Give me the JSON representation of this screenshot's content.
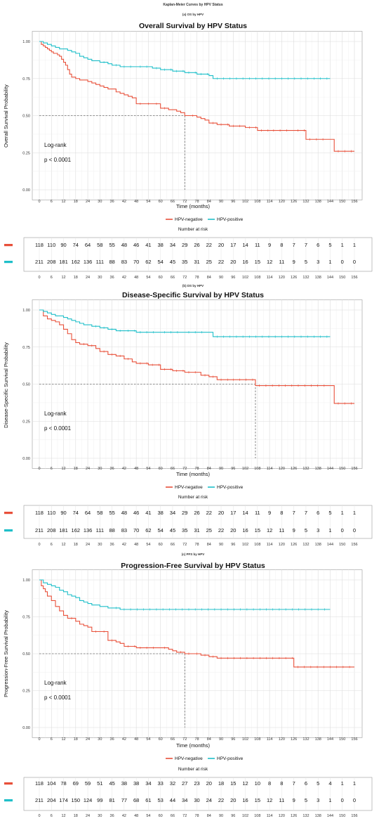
{
  "figure_title": "Kaplan-Meier Curves by HPV Status",
  "chart_data": [
    {
      "type": "line",
      "panel_label": "(a) OS by HPV",
      "title": "Overall Survival by HPV Status",
      "xlabel": "Time (months)",
      "ylabel": "Overall Survival Probability",
      "xlim": [
        0,
        156
      ],
      "ylim": [
        0,
        1
      ],
      "xticks": [
        "0",
        "6",
        "12",
        "18",
        "24",
        "30",
        "36",
        "42",
        "48",
        "54",
        "60",
        "66",
        "72",
        "78",
        "84",
        "90",
        "96",
        "102",
        "108",
        "114",
        "120",
        "126",
        "132",
        "138",
        "144",
        "150",
        "156"
      ],
      "yticks": [
        "0.00",
        "0.25",
        "0.50",
        "0.75",
        "1.00"
      ],
      "grid": true,
      "annotation_line1": "Log-rank",
      "annotation_line2": "p < 0.0001",
      "median_survival_months": 72,
      "legend": {
        "placement": "bottom",
        "entries": [
          "HPV-negative",
          "HPV-positive"
        ]
      },
      "series": [
        {
          "name": "HPV-negative",
          "color": "#E8503A",
          "x": [
            0,
            1,
            2,
            3,
            4,
            5,
            6,
            7,
            8,
            9,
            10,
            11,
            12,
            13,
            14,
            15,
            16,
            18,
            20,
            22,
            24,
            26,
            28,
            30,
            32,
            34,
            36,
            38,
            40,
            42,
            44,
            46,
            48,
            52,
            56,
            60,
            64,
            66,
            68,
            70,
            72,
            74,
            78,
            80,
            82,
            84,
            88,
            94,
            102,
            108,
            114,
            126,
            132,
            144,
            146,
            156
          ],
          "y": [
            1.0,
            0.98,
            0.97,
            0.96,
            0.95,
            0.94,
            0.93,
            0.92,
            0.92,
            0.91,
            0.9,
            0.88,
            0.86,
            0.84,
            0.81,
            0.78,
            0.76,
            0.75,
            0.74,
            0.74,
            0.73,
            0.72,
            0.71,
            0.7,
            0.69,
            0.68,
            0.68,
            0.66,
            0.65,
            0.64,
            0.63,
            0.62,
            0.58,
            0.58,
            0.58,
            0.55,
            0.54,
            0.54,
            0.53,
            0.52,
            0.5,
            0.5,
            0.49,
            0.48,
            0.47,
            0.45,
            0.44,
            0.43,
            0.42,
            0.4,
            0.4,
            0.4,
            0.34,
            0.34,
            0.26,
            0.26
          ]
        },
        {
          "name": "HPV-positive",
          "color": "#1FBFC9",
          "x": [
            0,
            2,
            4,
            6,
            8,
            10,
            12,
            14,
            16,
            18,
            20,
            22,
            24,
            26,
            28,
            30,
            34,
            36,
            40,
            48,
            56,
            60,
            66,
            72,
            78,
            84,
            86,
            144
          ],
          "y": [
            1.0,
            0.99,
            0.98,
            0.97,
            0.96,
            0.95,
            0.95,
            0.94,
            0.93,
            0.92,
            0.9,
            0.89,
            0.88,
            0.87,
            0.87,
            0.86,
            0.85,
            0.84,
            0.83,
            0.83,
            0.82,
            0.81,
            0.8,
            0.79,
            0.78,
            0.77,
            0.75,
            0.75
          ]
        }
      ],
      "risk_table": {
        "title": "Number at risk",
        "HPV-negative": [
          "118",
          "110",
          "90",
          "74",
          "64",
          "58",
          "55",
          "48",
          "46",
          "41",
          "38",
          "34",
          "29",
          "26",
          "22",
          "20",
          "17",
          "14",
          "11",
          "9",
          "8",
          "7",
          "7",
          "6",
          "5",
          "1",
          "1"
        ],
        "HPV-positive": [
          "211",
          "208",
          "181",
          "162",
          "136",
          "111",
          "88",
          "83",
          "70",
          "62",
          "54",
          "45",
          "35",
          "31",
          "25",
          "22",
          "20",
          "16",
          "15",
          "12",
          "11",
          "9",
          "5",
          "3",
          "1",
          "0",
          "0"
        ]
      }
    },
    {
      "type": "line",
      "panel_label": "(b) DS by HPV",
      "title": "Disease-Specific Survival by HPV Status",
      "xlabel": "Time (months)",
      "ylabel": "Disease-Specific Survival Probability",
      "xlim": [
        0,
        156
      ],
      "ylim": [
        0,
        1
      ],
      "xticks": [
        "0",
        "6",
        "12",
        "18",
        "24",
        "30",
        "36",
        "42",
        "48",
        "54",
        "60",
        "66",
        "72",
        "78",
        "84",
        "90",
        "96",
        "102",
        "108",
        "114",
        "120",
        "126",
        "132",
        "138",
        "144",
        "150",
        "156"
      ],
      "yticks": [
        "0.00",
        "0.25",
        "0.50",
        "0.75",
        "1.00"
      ],
      "grid": true,
      "annotation_line1": "Log-rank",
      "annotation_line2": "p < 0.0001",
      "median_survival_months": 107,
      "legend": {
        "placement": "bottom",
        "entries": [
          "HPV-negative",
          "HPV-positive"
        ]
      },
      "series": [
        {
          "name": "HPV-negative",
          "color": "#E8503A",
          "x": [
            0,
            2,
            4,
            6,
            8,
            10,
            12,
            14,
            16,
            18,
            20,
            24,
            28,
            30,
            34,
            38,
            42,
            46,
            48,
            54,
            60,
            66,
            72,
            80,
            84,
            88,
            94,
            107,
            144,
            146,
            156
          ],
          "y": [
            1.0,
            0.96,
            0.94,
            0.93,
            0.92,
            0.9,
            0.87,
            0.84,
            0.8,
            0.78,
            0.77,
            0.76,
            0.74,
            0.72,
            0.7,
            0.69,
            0.67,
            0.65,
            0.64,
            0.63,
            0.6,
            0.59,
            0.58,
            0.56,
            0.55,
            0.53,
            0.53,
            0.49,
            0.49,
            0.37,
            0.37
          ]
        },
        {
          "name": "HPV-positive",
          "color": "#1FBFC9",
          "x": [
            0,
            2,
            4,
            6,
            8,
            10,
            12,
            14,
            16,
            18,
            20,
            22,
            24,
            26,
            30,
            34,
            38,
            42,
            48,
            60,
            72,
            84,
            86,
            144
          ],
          "y": [
            1.0,
            0.99,
            0.98,
            0.97,
            0.96,
            0.96,
            0.95,
            0.94,
            0.93,
            0.92,
            0.91,
            0.9,
            0.9,
            0.89,
            0.88,
            0.87,
            0.86,
            0.86,
            0.85,
            0.85,
            0.85,
            0.85,
            0.82,
            0.82
          ]
        }
      ],
      "risk_table": {
        "title": "Number at risk",
        "HPV-negative": [
          "118",
          "110",
          "90",
          "74",
          "64",
          "58",
          "55",
          "48",
          "46",
          "41",
          "38",
          "34",
          "29",
          "26",
          "22",
          "20",
          "17",
          "14",
          "11",
          "9",
          "8",
          "7",
          "7",
          "6",
          "5",
          "1",
          "1"
        ],
        "HPV-positive": [
          "211",
          "208",
          "181",
          "162",
          "136",
          "111",
          "88",
          "83",
          "70",
          "62",
          "54",
          "45",
          "35",
          "31",
          "25",
          "22",
          "20",
          "16",
          "15",
          "12",
          "11",
          "9",
          "5",
          "3",
          "1",
          "0",
          "0"
        ]
      }
    },
    {
      "type": "line",
      "panel_label": "(c) PFS by HPV",
      "title": "Progression-Free Survival by HPV Status",
      "xlabel": "Time (months)",
      "ylabel": "Progression-Free Survival Probability",
      "xlim": [
        0,
        156
      ],
      "ylim": [
        0,
        1
      ],
      "xticks": [
        "0",
        "6",
        "12",
        "18",
        "24",
        "30",
        "36",
        "42",
        "48",
        "54",
        "60",
        "66",
        "72",
        "78",
        "84",
        "90",
        "96",
        "102",
        "108",
        "114",
        "120",
        "126",
        "132",
        "138",
        "144",
        "150",
        "156"
      ],
      "yticks": [
        "0.00",
        "0.25",
        "0.50",
        "0.75",
        "1.00"
      ],
      "grid": true,
      "annotation_line1": "Log-rank",
      "annotation_line2": "p < 0.0001",
      "median_survival_months": 72,
      "legend": {
        "placement": "bottom",
        "entries": [
          "HPV-negative",
          "HPV-positive"
        ]
      },
      "series": [
        {
          "name": "HPV-negative",
          "color": "#E8503A",
          "x": [
            0,
            1,
            2,
            3,
            4,
            6,
            8,
            10,
            12,
            14,
            18,
            20,
            22,
            24,
            26,
            30,
            34,
            38,
            40,
            42,
            48,
            60,
            64,
            66,
            68,
            72,
            76,
            80,
            84,
            88,
            126,
            156
          ],
          "y": [
            1.0,
            0.96,
            0.94,
            0.92,
            0.89,
            0.86,
            0.82,
            0.79,
            0.76,
            0.74,
            0.72,
            0.7,
            0.69,
            0.68,
            0.65,
            0.65,
            0.59,
            0.58,
            0.57,
            0.55,
            0.54,
            0.54,
            0.53,
            0.52,
            0.51,
            0.5,
            0.5,
            0.49,
            0.48,
            0.47,
            0.41,
            0.41
          ]
        },
        {
          "name": "HPV-positive",
          "color": "#1FBFC9",
          "x": [
            0,
            2,
            4,
            6,
            8,
            10,
            12,
            14,
            16,
            18,
            20,
            22,
            24,
            26,
            28,
            30,
            32,
            34,
            36,
            40,
            144
          ],
          "y": [
            1.0,
            0.98,
            0.97,
            0.96,
            0.95,
            0.93,
            0.92,
            0.9,
            0.89,
            0.88,
            0.86,
            0.85,
            0.84,
            0.83,
            0.83,
            0.82,
            0.82,
            0.81,
            0.81,
            0.8,
            0.8
          ]
        }
      ],
      "risk_table": {
        "title": "Number at risk",
        "HPV-negative": [
          "118",
          "104",
          "78",
          "69",
          "59",
          "51",
          "45",
          "38",
          "38",
          "34",
          "33",
          "32",
          "27",
          "23",
          "20",
          "18",
          "15",
          "12",
          "10",
          "8",
          "8",
          "7",
          "6",
          "5",
          "4",
          "1",
          "1"
        ],
        "HPV-positive": [
          "211",
          "204",
          "174",
          "150",
          "124",
          "99",
          "81",
          "77",
          "68",
          "61",
          "53",
          "44",
          "34",
          "30",
          "24",
          "22",
          "20",
          "16",
          "15",
          "12",
          "11",
          "9",
          "5",
          "3",
          "1",
          "0",
          "0"
        ]
      }
    }
  ]
}
